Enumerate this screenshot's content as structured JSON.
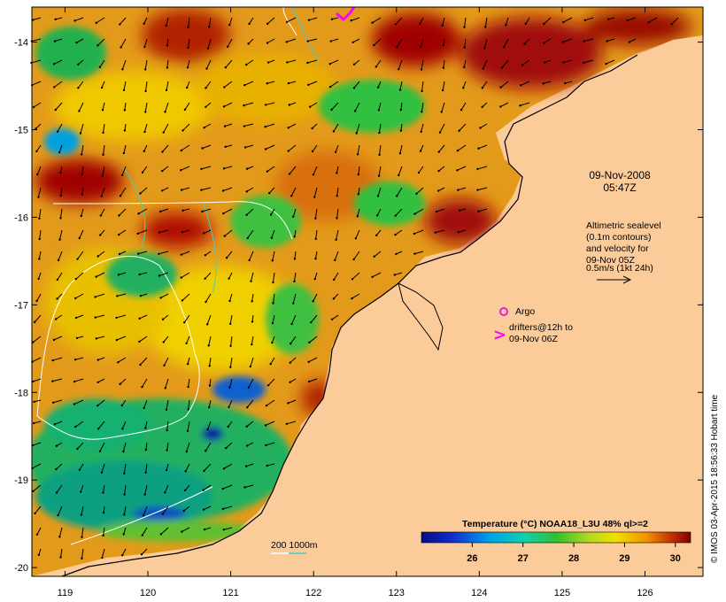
{
  "map": {
    "date_line1": "09-Nov-2008",
    "date_line2": "05:47Z",
    "altimetry_lines": [
      "Altimetric sealevel",
      "(0.1m contours)",
      "and velocity for",
      "09-Nov 05Z",
      "0.5m/s (1kt 24h)"
    ],
    "argo_label": "Argo",
    "drifters_line1": "drifters@12h to",
    "drifters_line2": "09-Nov 06Z",
    "drifter_symbol": ">",
    "depth_label": "200  1000m",
    "credit": "© IMOS 03-Apr-2015 18:56:33 Hobart time",
    "colorbar_title": "Temperature (°C) NOAA18_L3U 48% ql>=2",
    "colorbar_ticks": [
      "26",
      "27",
      "28",
      "29",
      "30"
    ],
    "colorbar_range": [
      25.0,
      30.3
    ],
    "x_ticks": [
      "119",
      "120",
      "121",
      "122",
      "123",
      "124",
      "125",
      "126"
    ],
    "y_ticks": [
      "-14",
      "-15",
      "-16",
      "-17",
      "-18",
      "-19",
      "-20"
    ],
    "lon_range": [
      118.6,
      126.7
    ],
    "lat_range": [
      -13.6,
      -20.1
    ],
    "colors": {
      "land": "#fccb9a",
      "sst_cold": "#0a1aa0",
      "sst_cool": "#00b4e0",
      "sst_mid": "#38c050",
      "sst_warm": "#f0d800",
      "sst_hot": "#d06010",
      "sst_max": "#a00000",
      "argo": "#e020e0",
      "drifter": "#ff00ff",
      "isobath_200": "#ffffff",
      "isobath_1000": "#40d0d0"
    }
  }
}
